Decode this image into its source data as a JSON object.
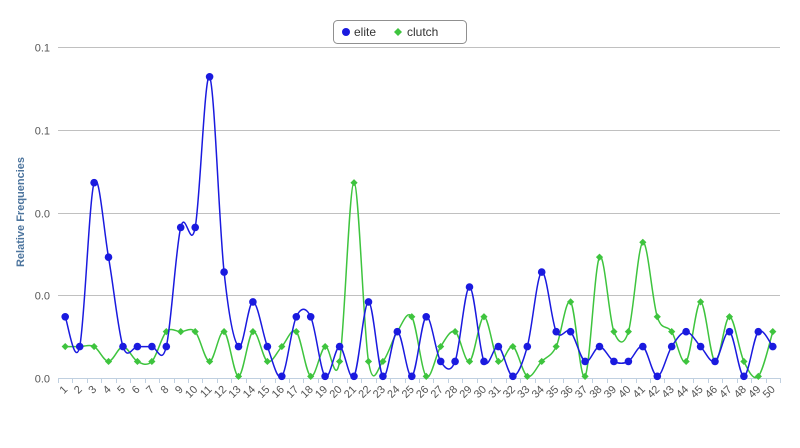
{
  "chart_data": {
    "type": "line",
    "title": "",
    "xlabel": "",
    "ylabel": "Relative Frequencies",
    "legend": "top-center",
    "grid": true,
    "ylim": [
      0,
      0.2
    ],
    "y_ticks": [
      0,
      0.05,
      0.1,
      0.15,
      0.2
    ],
    "y_tick_labels": [
      "0.0",
      "0.0",
      "0.0",
      "0.1",
      "0.1"
    ],
    "categories": [
      "1",
      "2",
      "3",
      "4",
      "5",
      "6",
      "7",
      "8",
      "9",
      "10",
      "11",
      "12",
      "13",
      "14",
      "15",
      "16",
      "17",
      "18",
      "19",
      "20",
      "21",
      "22",
      "23",
      "24",
      "25",
      "26",
      "27",
      "28",
      "29",
      "30",
      "31",
      "32",
      "33",
      "34",
      "35",
      "36",
      "37",
      "38",
      "39",
      "40",
      "41",
      "42",
      "43",
      "44",
      "45",
      "46",
      "47",
      "48",
      "49",
      "50"
    ],
    "series": [
      {
        "name": "elite",
        "color": "#1a1adf",
        "marker": "circle",
        "values": [
          0.037,
          0.019,
          0.118,
          0.073,
          0.019,
          0.019,
          0.019,
          0.019,
          0.091,
          0.091,
          0.182,
          0.064,
          0.019,
          0.046,
          0.019,
          0.001,
          0.037,
          0.037,
          0.001,
          0.019,
          0.001,
          0.046,
          0.001,
          0.028,
          0.001,
          0.037,
          0.01,
          0.01,
          0.055,
          0.01,
          0.019,
          0.001,
          0.019,
          0.064,
          0.028,
          0.028,
          0.01,
          0.019,
          0.01,
          0.01,
          0.019,
          0.001,
          0.019,
          0.028,
          0.019,
          0.01,
          0.028,
          0.001,
          0.028,
          0.019
        ]
      },
      {
        "name": "clutch",
        "color": "#3ec43e",
        "marker": "diamond",
        "values": [
          0.019,
          0.019,
          0.019,
          0.01,
          0.019,
          0.01,
          0.01,
          0.028,
          0.028,
          0.028,
          0.01,
          0.028,
          0.001,
          0.028,
          0.01,
          0.019,
          0.028,
          0.001,
          0.019,
          0.01,
          0.118,
          0.01,
          0.01,
          0.028,
          0.037,
          0.001,
          0.019,
          0.028,
          0.01,
          0.037,
          0.01,
          0.019,
          0.001,
          0.01,
          0.019,
          0.046,
          0.001,
          0.073,
          0.028,
          0.028,
          0.082,
          0.037,
          0.028,
          0.01,
          0.046,
          0.01,
          0.037,
          0.01,
          0.001,
          0.028
        ]
      }
    ]
  }
}
